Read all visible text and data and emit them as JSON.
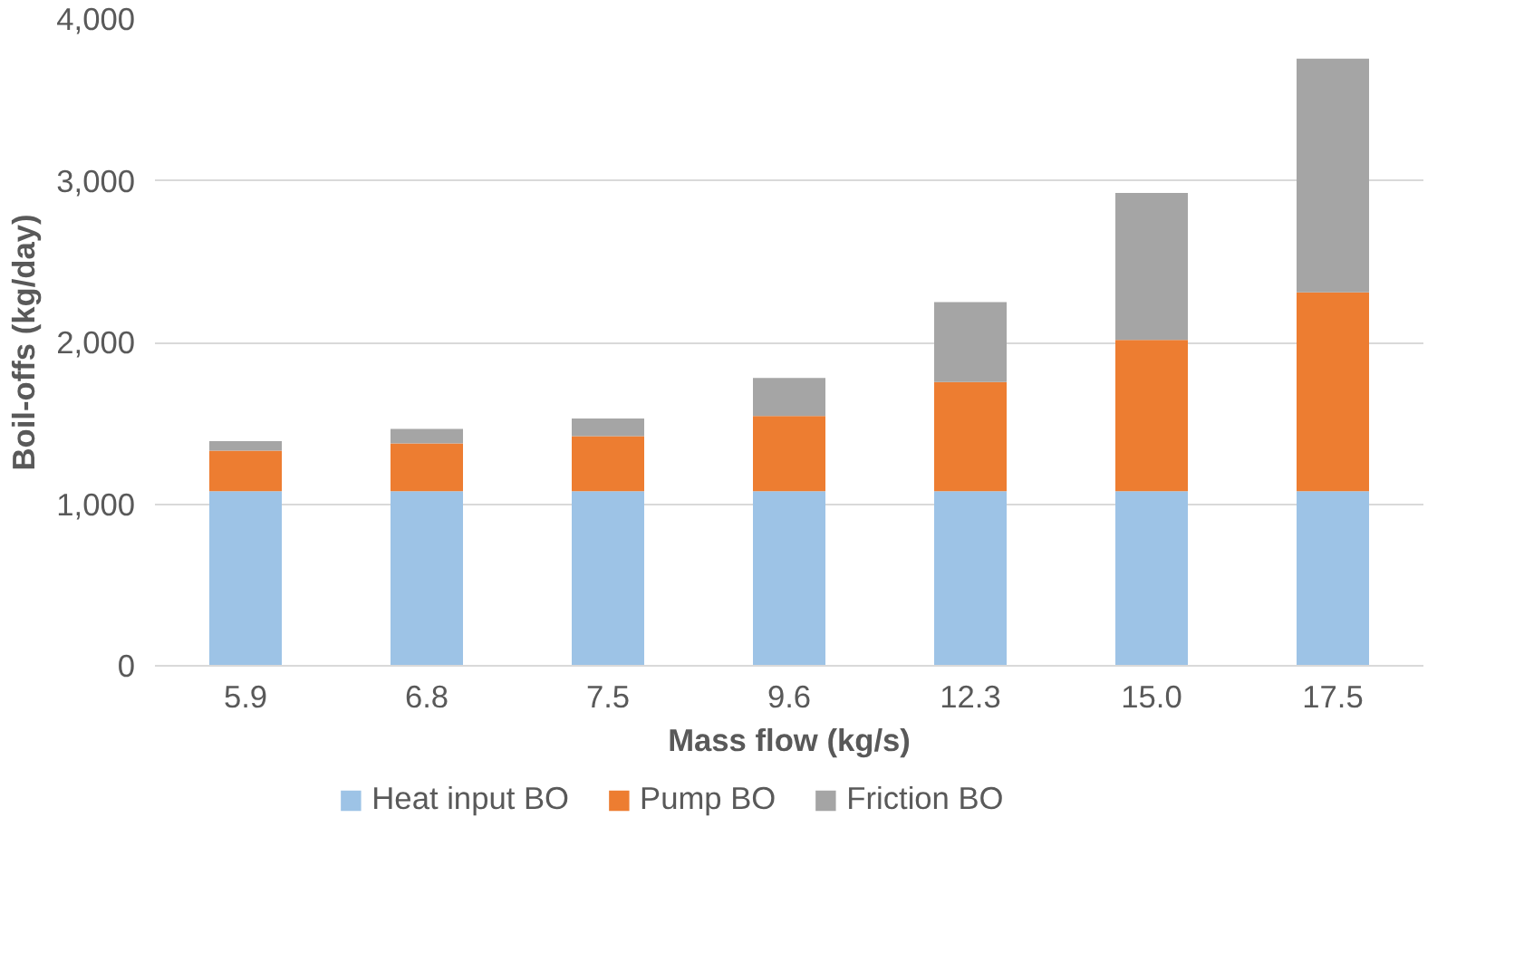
{
  "chart_data": {
    "type": "bar",
    "stacked": true,
    "xlabel": "Mass flow (kg/s)",
    "ylabel": "Boil-offs (kg/day)",
    "categories": [
      "5.9",
      "6.8",
      "7.5",
      "9.6",
      "12.3",
      "15.0",
      "17.5"
    ],
    "series": [
      {
        "name": "Heat input BO",
        "color": "#9dc3e6",
        "values": [
          1080,
          1080,
          1080,
          1080,
          1080,
          1080,
          1080
        ]
      },
      {
        "name": "Pump BO",
        "color": "#ed7d31",
        "values": [
          250,
          295,
          340,
          465,
          675,
          935,
          1230
        ]
      },
      {
        "name": "Friction BO",
        "color": "#a5a5a5",
        "values": [
          60,
          90,
          110,
          235,
          495,
          910,
          1445
        ]
      }
    ],
    "ylim": [
      0,
      4000
    ],
    "yticks": [
      {
        "value": 0,
        "label": "0"
      },
      {
        "value": 1000,
        "label": "1,000"
      },
      {
        "value": 2000,
        "label": "2,000"
      },
      {
        "value": 3000,
        "label": "3,000"
      },
      {
        "value": 4000,
        "label": "4,000"
      }
    ],
    "grid": "y",
    "legend": "bottom"
  }
}
